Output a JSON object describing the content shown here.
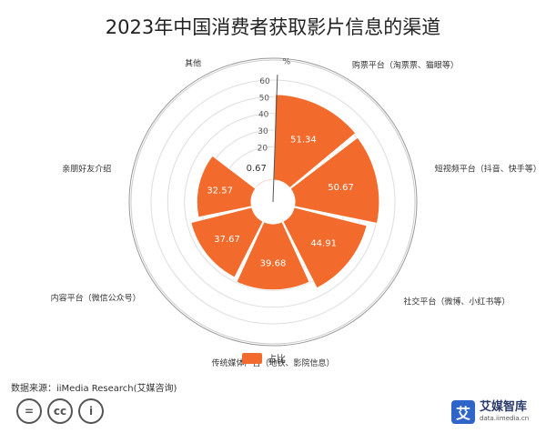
{
  "colors": {
    "accent": "#f26b2c",
    "ring": "#dddddd",
    "text": "#333333"
  },
  "chart_data": {
    "type": "polar-bar",
    "title": "2023年中国消费者获取影片信息的渠道",
    "unit": "%",
    "radial_ticks": [
      "20",
      "30",
      "40",
      "50",
      "60"
    ],
    "rmax": 60,
    "categories": [
      "购票平台（淘票票、猫眼等）",
      "短视频平台（抖音、快手等）",
      "社交平台（微博、小红书等）",
      "传统媒体广告（地铁、影院信息）",
      "内容平台（微信公众号）",
      "亲朋好友介绍",
      "其他"
    ],
    "series": [
      {
        "name": "占比",
        "values": [
          51.34,
          50.67,
          44.91,
          39.68,
          37.67,
          32.57,
          0.67
        ]
      }
    ],
    "legend": "bottom"
  },
  "footer": {
    "source": "数据来源：iiMedia Research(艾媒咨询)",
    "cc_icons": [
      "=",
      "cc",
      "i"
    ],
    "brand_logo": "艾",
    "brand_name": "艾媒智库",
    "brand_url": "data.iimedia.cn"
  }
}
